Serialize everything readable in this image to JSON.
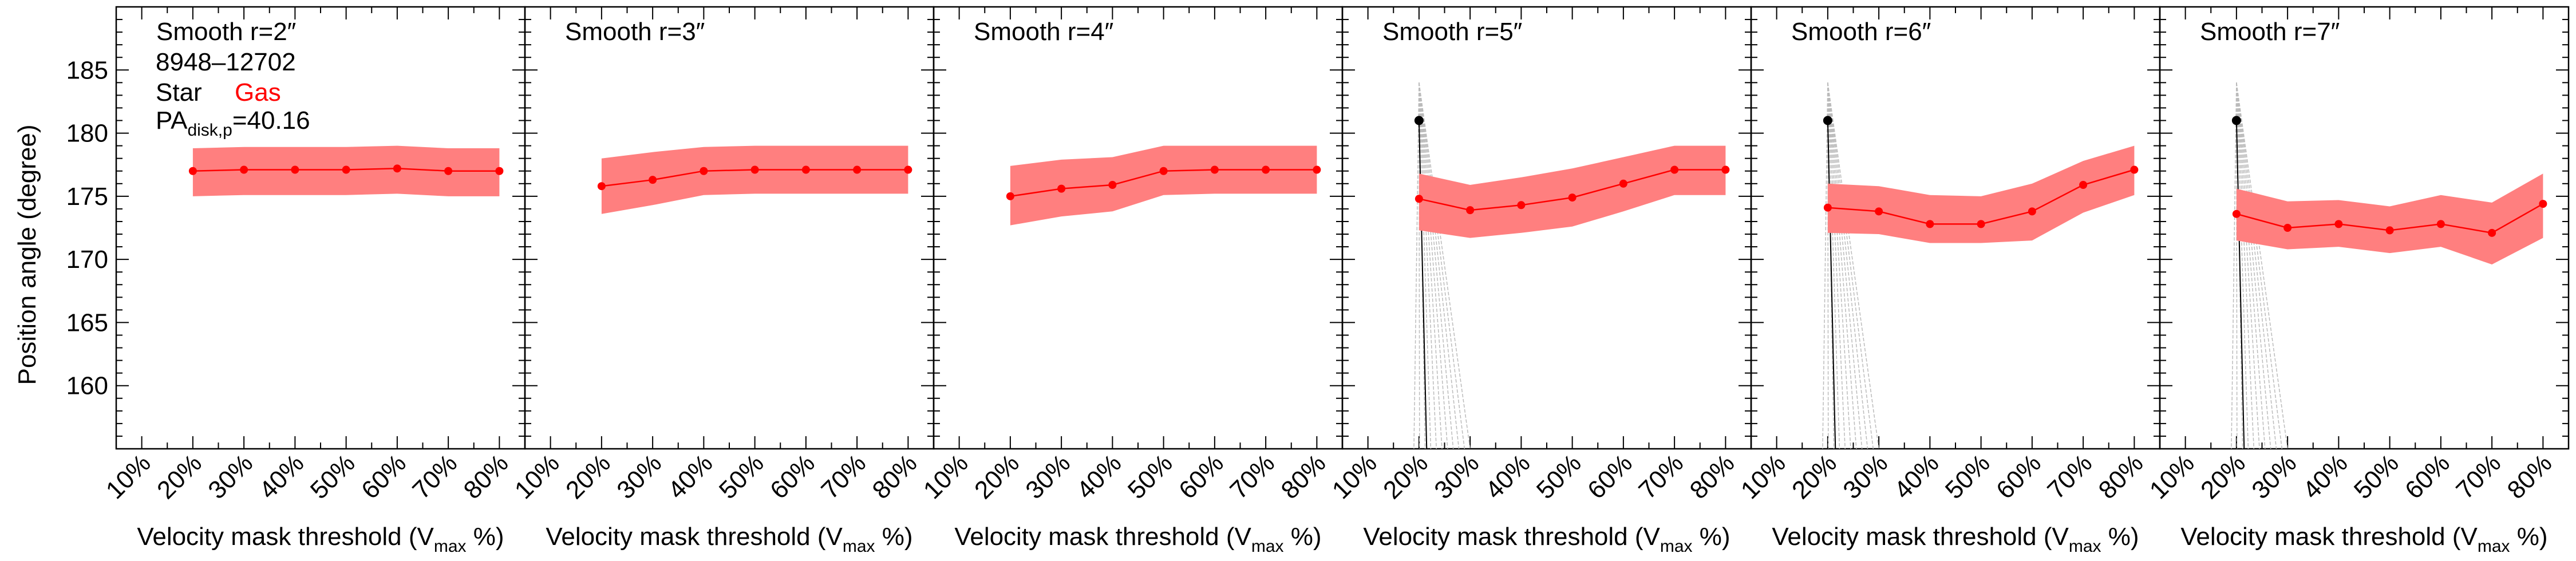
{
  "figure": {
    "ylabel": "Position angle (degree)",
    "xlabel_prefix": "Velocity mask threshold (V",
    "xlabel_sub": "max",
    "xlabel_suffix": " %)"
  },
  "legend": {
    "galaxy_id": "8948–12702",
    "star_label": "Star",
    "gas_label": "Gas",
    "pa_prefix": "PA",
    "pa_sub": "disk,p",
    "pa_value": "=40.16"
  },
  "colors": {
    "gas": "#ff0000",
    "band": "#ff7f7f",
    "star": "#000000",
    "star_band": "#bbbbbb",
    "axis": "#000000"
  },
  "chart_data": [
    {
      "type": "line",
      "title": "Smooth r=2″",
      "x_tick_labels": [
        "10%",
        "20%",
        "30%",
        "40%",
        "50%",
        "60%",
        "70%",
        "80%"
      ],
      "xlim": [
        5,
        85
      ],
      "ylim": [
        155,
        190
      ],
      "y_tick_labels": [
        "160",
        "165",
        "170",
        "175",
        "180",
        "185"
      ],
      "series": [
        {
          "name": "Gas",
          "x": [
            20,
            30,
            40,
            50,
            60,
            70,
            80
          ],
          "y": [
            177.0,
            177.1,
            177.1,
            177.1,
            177.2,
            177.0,
            177.0
          ],
          "lower": [
            175.0,
            175.1,
            175.1,
            175.1,
            175.2,
            175.0,
            175.0
          ],
          "upper": [
            178.8,
            178.9,
            178.9,
            178.9,
            179.0,
            178.8,
            178.8
          ]
        }
      ]
    },
    {
      "type": "line",
      "title": "Smooth r=3″",
      "x_tick_labels": [
        "10%",
        "20%",
        "30%",
        "40%",
        "50%",
        "60%",
        "70%",
        "80%"
      ],
      "xlim": [
        5,
        85
      ],
      "ylim": [
        155,
        190
      ],
      "series": [
        {
          "name": "Gas",
          "x": [
            20,
            30,
            40,
            50,
            60,
            70,
            80
          ],
          "y": [
            175.8,
            176.3,
            177.0,
            177.1,
            177.1,
            177.1,
            177.1
          ],
          "lower": [
            173.6,
            174.3,
            175.1,
            175.2,
            175.2,
            175.2,
            175.2
          ],
          "upper": [
            178.0,
            178.5,
            178.9,
            179.0,
            179.0,
            179.0,
            179.0
          ]
        }
      ]
    },
    {
      "type": "line",
      "title": "Smooth r=4″",
      "x_tick_labels": [
        "10%",
        "20%",
        "30%",
        "40%",
        "50%",
        "60%",
        "70%",
        "80%"
      ],
      "xlim": [
        5,
        85
      ],
      "ylim": [
        155,
        190
      ],
      "series": [
        {
          "name": "Gas",
          "x": [
            20,
            30,
            40,
            50,
            60,
            70,
            80
          ],
          "y": [
            175.0,
            175.6,
            175.9,
            177.0,
            177.1,
            177.1,
            177.1
          ],
          "lower": [
            172.7,
            173.4,
            173.8,
            175.1,
            175.2,
            175.2,
            175.2
          ],
          "upper": [
            177.4,
            177.9,
            178.1,
            179.0,
            179.0,
            179.0,
            179.0
          ]
        }
      ]
    },
    {
      "type": "line",
      "title": "Smooth r=5″",
      "x_tick_labels": [
        "10%",
        "20%",
        "30%",
        "40%",
        "50%",
        "60%",
        "70%",
        "80%"
      ],
      "xlim": [
        5,
        85
      ],
      "ylim": [
        155,
        190
      ],
      "series": [
        {
          "name": "Star",
          "x": [
            20
          ],
          "y": [
            181.0
          ],
          "drop_to_x": 21.5,
          "band_to_x": [
            19,
            30
          ]
        },
        {
          "name": "Gas",
          "x": [
            20,
            30,
            40,
            50,
            60,
            70,
            80
          ],
          "y": [
            174.8,
            173.9,
            174.3,
            174.9,
            176.0,
            177.1,
            177.1
          ],
          "lower": [
            172.3,
            171.7,
            172.1,
            172.6,
            173.8,
            175.1,
            175.1
          ],
          "upper": [
            176.8,
            175.9,
            176.5,
            177.2,
            178.1,
            179.0,
            179.0
          ]
        }
      ]
    },
    {
      "type": "line",
      "title": "Smooth r=6″",
      "x_tick_labels": [
        "10%",
        "20%",
        "30%",
        "40%",
        "50%",
        "60%",
        "70%",
        "80%"
      ],
      "xlim": [
        5,
        85
      ],
      "ylim": [
        155,
        190
      ],
      "series": [
        {
          "name": "Star",
          "x": [
            20
          ],
          "y": [
            181.0
          ],
          "drop_to_x": 21.5,
          "band_to_x": [
            19,
            30
          ]
        },
        {
          "name": "Gas",
          "x": [
            20,
            30,
            40,
            50,
            60,
            70,
            80
          ],
          "y": [
            174.1,
            173.8,
            172.8,
            172.8,
            173.8,
            175.9,
            177.1
          ],
          "lower": [
            172.1,
            172.0,
            171.3,
            171.3,
            171.5,
            173.7,
            175.1
          ],
          "upper": [
            176.0,
            175.8,
            175.1,
            175.0,
            176.0,
            177.8,
            179.0
          ]
        }
      ]
    },
    {
      "type": "line",
      "title": "Smooth r=7″",
      "x_tick_labels": [
        "10%",
        "20%",
        "30%",
        "40%",
        "50%",
        "60%",
        "70%",
        "80%"
      ],
      "xlim": [
        5,
        85
      ],
      "ylim": [
        155,
        190
      ],
      "series": [
        {
          "name": "Star",
          "x": [
            20
          ],
          "y": [
            181.0
          ],
          "drop_to_x": 21.5,
          "band_to_x": [
            19,
            30
          ]
        },
        {
          "name": "Gas",
          "x": [
            20,
            30,
            40,
            50,
            60,
            70,
            80
          ],
          "y": [
            173.6,
            172.5,
            172.8,
            172.3,
            172.8,
            172.1,
            174.4
          ],
          "lower": [
            171.5,
            170.8,
            171.0,
            170.5,
            171.0,
            169.6,
            171.7
          ],
          "upper": [
            175.6,
            174.6,
            174.7,
            174.2,
            175.1,
            174.5,
            176.8
          ]
        }
      ]
    }
  ]
}
